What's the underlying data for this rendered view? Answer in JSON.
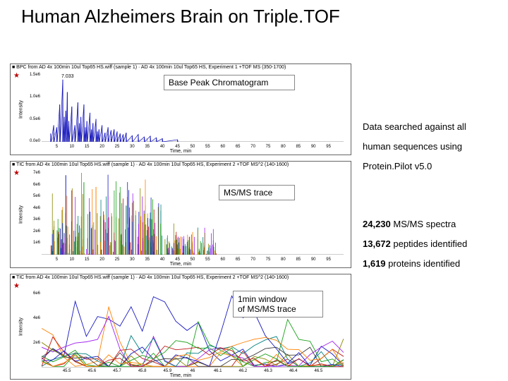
{
  "title": "Human Alzheimers Brain on Triple.TOF",
  "overlays": {
    "bpc": "Base Peak Chromatogram",
    "msms": "MS/MS trace",
    "window": "1min window\nof MS/MS trace"
  },
  "side": {
    "line1": "Data searched against all",
    "line2": "human sequences using",
    "line3": "Protein.Pilot v5.0",
    "line4_a": "24,230",
    "line4_b": " MS/MS spectra",
    "line5_a": "13,672",
    "line5_b": " peptides identified",
    "line6_a": "1,619",
    "line6_b": " proteins identified"
  },
  "panel1": {
    "header": "■ BPC from AD 4x 100min 10ul Top65 HS.wiff (sample 1) · AD 4x 100min 10ul Top65 HS, Experiment 1 +TOF MS (350-1700)",
    "ylabel": "Intensity",
    "xlabel": "Time, min",
    "yticks": [
      "0.0e0",
      "0.5e6",
      "1.0e6",
      "1.5e6"
    ],
    "xticks": [
      5,
      10,
      15,
      20,
      25,
      30,
      35,
      40,
      45,
      50,
      55,
      60,
      65,
      70,
      75,
      80,
      85,
      90,
      95
    ],
    "peak_label": "7.033",
    "xlim": [
      0,
      100
    ],
    "ymax": 1.6,
    "blue_peaks": [
      [
        3,
        0.2
      ],
      [
        4,
        0.4
      ],
      [
        5,
        0.35
      ],
      [
        6,
        0.9
      ],
      [
        7,
        1.5
      ],
      [
        7.5,
        0.6
      ],
      [
        8,
        0.75
      ],
      [
        8.5,
        1.2
      ],
      [
        9,
        0.5
      ],
      [
        10,
        0.85
      ],
      [
        11,
        0.4
      ],
      [
        12,
        0.95
      ],
      [
        12.5,
        0.45
      ],
      [
        13,
        0.6
      ],
      [
        14,
        0.9
      ],
      [
        14.5,
        0.35
      ],
      [
        15,
        0.5
      ],
      [
        16,
        0.7
      ],
      [
        16.5,
        0.3
      ],
      [
        17,
        0.45
      ],
      [
        18,
        0.55
      ],
      [
        18.5,
        0.25
      ],
      [
        19,
        0.3
      ],
      [
        20,
        0.4
      ],
      [
        21,
        0.22
      ],
      [
        22,
        0.35
      ],
      [
        23,
        0.28
      ],
      [
        24,
        0.3
      ],
      [
        25,
        0.25
      ],
      [
        26,
        0.2
      ],
      [
        27,
        0.18
      ],
      [
        28,
        0.22
      ],
      [
        30,
        0.15
      ],
      [
        32,
        0.18
      ],
      [
        34,
        0.12
      ],
      [
        36,
        0.14
      ],
      [
        38,
        0.1
      ],
      [
        40,
        0.08
      ],
      [
        45,
        0.05
      ]
    ],
    "gray_peaks": [
      [
        3,
        0.1
      ],
      [
        5,
        0.3
      ],
      [
        6,
        0.5
      ],
      [
        7,
        0.8
      ],
      [
        8,
        0.6
      ],
      [
        9,
        0.4
      ],
      [
        10,
        0.55
      ],
      [
        11,
        0.3
      ],
      [
        12,
        0.5
      ],
      [
        13,
        0.35
      ],
      [
        14,
        0.45
      ],
      [
        15,
        0.3
      ],
      [
        16,
        0.4
      ],
      [
        17,
        0.25
      ],
      [
        18,
        0.3
      ],
      [
        20,
        0.25
      ],
      [
        22,
        0.2
      ],
      [
        24,
        0.18
      ],
      [
        26,
        0.15
      ],
      [
        28,
        0.12
      ],
      [
        30,
        0.1
      ],
      [
        35,
        0.08
      ],
      [
        40,
        0.05
      ]
    ],
    "colors": {
      "blue": "#1818c0",
      "gray": "#b0b0b0"
    }
  },
  "panel2": {
    "header": "■ TIC from AD 4x 100min 10ul Top65 HS.wiff (sample 1) · AD 4x 100min 10ul Top65 HS, Experiment 2 +TOF MS^2 (140-1600)",
    "ylabel": "Intensity",
    "xlabel": "Time, min",
    "yticks": [
      "1e6",
      "2e6",
      "3e6",
      "4e6",
      "5e6",
      "6e6",
      "7e6"
    ],
    "xticks": [
      5,
      10,
      15,
      20,
      25,
      30,
      35,
      40,
      45,
      50,
      55,
      60,
      65,
      70,
      75,
      80,
      85,
      90,
      95
    ],
    "xlim": [
      0,
      100
    ],
    "ymax": 7,
    "colors": [
      "#1818c0",
      "#c01818",
      "#18a018",
      "#ff8000",
      "#a020f0",
      "#008080",
      "#888800"
    ],
    "density": 320
  },
  "panel3": {
    "header": "■ TIC from AD 4x 100min 10ul Top65 HS.wiff (sample 1) · AD 4x 100min 10ul Top65 HS, Experiment 2 +TOF MS^2 (140-1600)",
    "ylabel": "Intensity",
    "xlabel": "Time, min",
    "yticks": [
      "2e6",
      "4e6",
      "6e6"
    ],
    "xticks": [
      45.5,
      45.6,
      45.7,
      45.8,
      45.9,
      46.0,
      46.1,
      46.2,
      46.3,
      46.4,
      46.5
    ],
    "xlim": [
      45.4,
      46.6
    ],
    "ymax": 7,
    "colors": [
      "#1818c0",
      "#c01818",
      "#18a018",
      "#ff8000",
      "#a020f0",
      "#008080",
      "#888800",
      "#404040"
    ],
    "n_traces": 12,
    "points_per_trace": 28
  }
}
